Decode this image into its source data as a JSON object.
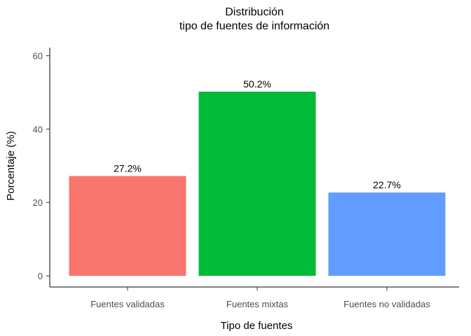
{
  "chart_data": {
    "type": "bar",
    "title": "Distribución",
    "subtitle": "tipo de fuentes de información",
    "xlabel": "Tipo de fuentes",
    "ylabel": "Porcentaje (%)",
    "categories": [
      "Fuentes validadas",
      "Fuentes mixtas",
      "Fuentes no validadas"
    ],
    "values": [
      27.2,
      50.2,
      22.7
    ],
    "data_labels": [
      "27.2%",
      "50.2%",
      "22.7%"
    ],
    "colors": [
      "#F8766D",
      "#00BA38",
      "#619CFF"
    ],
    "ylim": [
      0,
      62.5
    ],
    "yticks": [
      0,
      20,
      40,
      60
    ],
    "ytick_labels": [
      "0",
      "20",
      "40",
      "60"
    ],
    "grid": false,
    "legend": "none"
  }
}
